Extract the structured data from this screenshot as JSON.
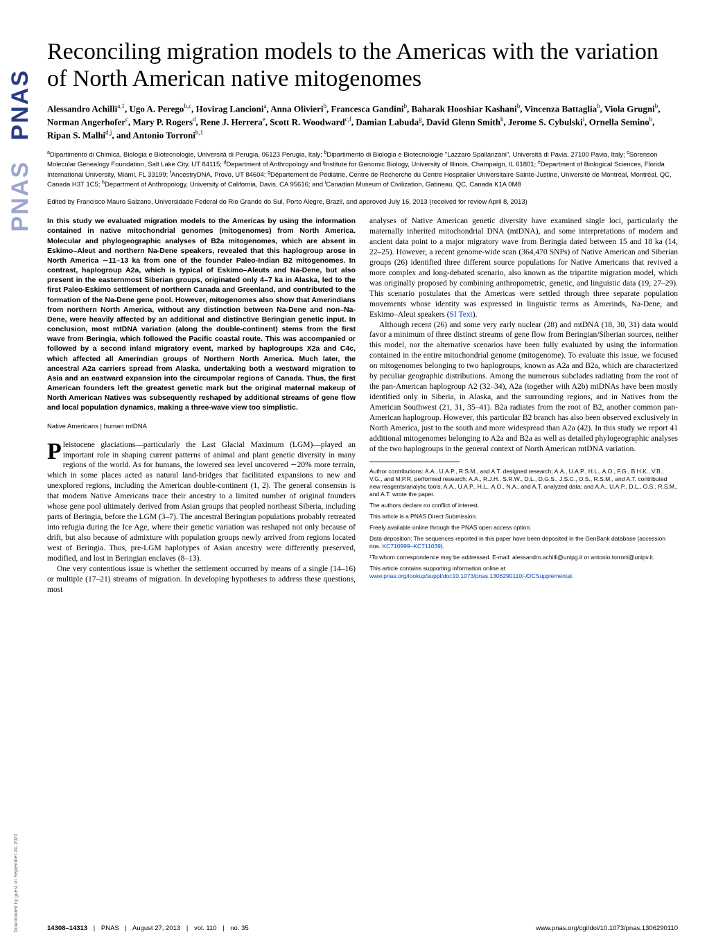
{
  "logo": {
    "text1": "PNAS",
    "text2": "PNAS"
  },
  "download_note": "Downloaded by guest on September 24, 2021",
  "title": "Reconciling migration models to the Americas with the variation of North American native mitogenomes",
  "authors_html": "Alessandro Achilli<sup>a,1</sup>, Ugo A. Perego<sup>b,c</sup>, Hovirag Lancioni<sup>a</sup>, Anna Olivieri<sup>b</sup>, Francesca Gandini<sup>b</sup>, Baharak Hooshiar Kashani<sup>b</sup>, Vincenza Battaglia<sup>b</sup>, Viola Grugni<sup>b</sup>, Norman Angerhofer<sup>c</sup>, Mary P. Rogers<sup>d</sup>, Rene J. Herrera<sup>e</sup>, Scott R. Woodward<sup>c,f</sup>, Damian Labuda<sup>g</sup>, David Glenn Smith<sup>h</sup>, Jerome S. Cybulski<sup>i</sup>, Ornella Semino<sup>b</sup>, Ripan S. Malhi<sup>d,j</sup>, and Antonio Torroni<sup>b,1</sup>",
  "affiliations_html": "<sup>a</sup>Dipartimento di Chimica, Biologia e Biotecnologie, Università di Perugia, 06123 Perugia, Italy; <sup>b</sup>Dipartimento di Biologia e Biotecnologie \"Lazzaro Spallanzani\", Università di Pavia, 27100 Pavia, Italy; <sup>c</sup>Sorenson Molecular Genealogy Foundation, Salt Lake City, UT 84115; <sup>d</sup>Department of Anthropology and <sup>j</sup>Institute for Genomic Biology, University of Illinois, Champaign, IL 61801; <sup>e</sup>Department of Biological Sciences, Florida International University, Miami, FL 33199; <sup>f</sup>AncestryDNA, Provo, UT 84604; <sup>g</sup>Département de Pédiatrie, Centre de Recherche du Centre Hospitalier Universitaire Sainte-Justine, Université de Montréal, Montréal, QC, Canada H3T 1C5; <sup>h</sup>Department of Anthropology, University of California, Davis, CA 95616; and <sup>i</sup>Canadian Museum of Civilization, Gatineau, QC, Canada K1A 0M8",
  "edited": "Edited by Francisco Mauro Salzano, Universidade Federal do Rio Grande do Sul, Porto Alegre, Brazil, and approved July 16, 2013 (received for review April 8, 2013)",
  "abstract": "In this study we evaluated migration models to the Americas by using the information contained in native mitochondrial genomes (mitogenomes) from North America. Molecular and phylogeographic analyses of B2a mitogenomes, which are absent in Eskimo–Aleut and northern Na-Dene speakers, revealed that this haplogroup arose in North America ∼11–13 ka from one of the founder Paleo-Indian B2 mitogenomes. In contrast, haplogroup A2a, which is typical of Eskimo–Aleuts and Na-Dene, but also present in the easternmost Siberian groups, originated only 4–7 ka in Alaska, led to the first Paleo-Eskimo settlement of northern Canada and Greenland, and contributed to the formation of the Na-Dene gene pool. However, mitogenomes also show that Amerindians from northern North America, without any distinction between Na-Dene and non–Na-Dene, were heavily affected by an additional and distinctive Beringian genetic input. In conclusion, most mtDNA variation (along the double-continent) stems from the first wave from Beringia, which followed the Pacific coastal route. This was accompanied or followed by a second inland migratory event, marked by haplogroups X2a and C4c, which affected all Amerindian groups of Northern North America. Much later, the ancestral A2a carriers spread from Alaska, undertaking both a westward migration to Asia and an eastward expansion into the circumpolar regions of Canada. Thus, the first American founders left the greatest genetic mark but the original maternal makeup of North American Natives was subsequently reshaped by additional streams of gene flow and local population dynamics, making a three-wave view too simplistic.",
  "keywords": "Native Americans | human mtDNA",
  "body_col1_p1_dropcap": "P",
  "body_col1_p1": "leistocene glaciations—particularly the Last Glacial Maximum (LGM)—played an important role in shaping current patterns of animal and plant genetic diversity in many regions of the world. As for humans, the lowered sea level uncovered ∼20% more terrain, which in some places acted as natural land-bridges that facilitated expansions to new and unexplored regions, including the American double-continent (1, 2). The general consensus is that modern Native Americans trace their ancestry to a limited number of original founders whose gene pool ultimately derived from Asian groups that peopled northeast Siberia, including parts of Beringia, before the LGM (3–7). The ancestral Beringian populations probably retreated into refugia during the Ice Age, where their genetic variation was reshaped not only because of drift, but also because of admixture with population groups newly arrived from regions located west of Beringia. Thus, pre-LGM haplotypes of Asian ancestry were differently preserved, modified, and lost in Beringian enclaves (8–13).",
  "body_col1_p2": "One very contentious issue is whether the settlement occurred by means of a single (14–16) or multiple (17–21) streams of migration. In developing hypotheses to address these questions, most",
  "body_col2_p1": "analyses of Native American genetic diversity have examined single loci, particularly the maternally inherited mitochondrial DNA (mtDNA), and some interpretations of modern and ancient data point to a major migratory wave from Beringia dated between 15 and 18 ka (14, 22–25). However, a recent genome-wide scan (364,470 SNPs) of Native American and Siberian groups (26) identified three different source populations for Native Americans that revived a more complex and long-debated scenario, also known as the tripartite migration model, which was originally proposed by combining anthropometric, genetic, and linguistic data (19, 27–29). This scenario postulates that the Americas were settled through three separate population movements whose identity was expressed in linguistic terms as Amerinds, Na-Dene, and Eskimo–Aleut speakers (",
  "body_col2_p1_link": "SI Text",
  "body_col2_p1_end": ").",
  "body_col2_p2": "Although recent (26) and some very early nuclear (28) and mtDNA (18, 30, 31) data would favor a minimum of three distinct streams of gene flow from Beringian/Siberian sources, neither this model, nor the alternative scenarios have been fully evaluated by using the information contained in the entire mitochondrial genome (mitogenome). To evaluate this issue, we focused on mitogenomes belonging to two haplogroups, known as A2a and B2a, which are characterized by peculiar geographic distributions. Among the numerous subclades radiating from the root of the pan-American haplogroup A2 (32–34), A2a (together with A2b) mtDNAs have been mostly identified only in Siberia, in Alaska, and the surrounding regions, and in Natives from the American Southwest (21, 31, 35–41). B2a radiates from the root of B2, another common pan-American haplogroup. However, this particular B2 branch has also been observed exclusively in North America, just to the south and more widespread than A2a (42). In this study we report 41 additional mitogenomes belonging to A2a and B2a as well as detailed phylogeographic analyses of the two haplogroups in the general context of North American mtDNA variation.",
  "footnotes": {
    "contributions": "Author contributions: A.A., U.A.P., R.S.M., and A.T. designed research; A.A., U.A.P., H.L., A.O., F.G., B.H.K., V.B., V.G., and M.P.R. performed research; A.A., R.J.H., S.R.W., D.L., D.G.S., J.S.C., O.S., R.S.M., and A.T. contributed new reagents/analytic tools; A.A., U.A.P., H.L., A.O., N.A., and A.T. analyzed data; and A.A., U.A.P., D.L., O.S., R.S.M., and A.T. wrote the paper.",
    "conflict": "The authors declare no conflict of interest.",
    "submission": "This article is a PNAS Direct Submission.",
    "open_access": "Freely available online through the PNAS open access option.",
    "data_dep": "Data deposition: The sequences reported in this paper have been deposited in the GenBank database (accession nos. ",
    "data_dep_link": "KC710999–KC711039",
    "data_dep_end": ").",
    "corresp": "¹To whom correspondence may be addressed. E-mail: alessandro.achilli@unipg.it or antonio.torroni@unipv.it.",
    "supp": "This article contains supporting information online at ",
    "supp_link": "www.pnas.org/lookup/suppl/doi:10.1073/pnas.1306290110/-/DCSupplemental",
    "supp_end": "."
  },
  "footer": {
    "left_pages": "14308–14313",
    "left_journal": "PNAS",
    "left_date": "August 27, 2013",
    "left_vol": "vol. 110",
    "left_no": "no. 35",
    "right": "www.pnas.org/cgi/doi/10.1073/pnas.1306290110"
  }
}
